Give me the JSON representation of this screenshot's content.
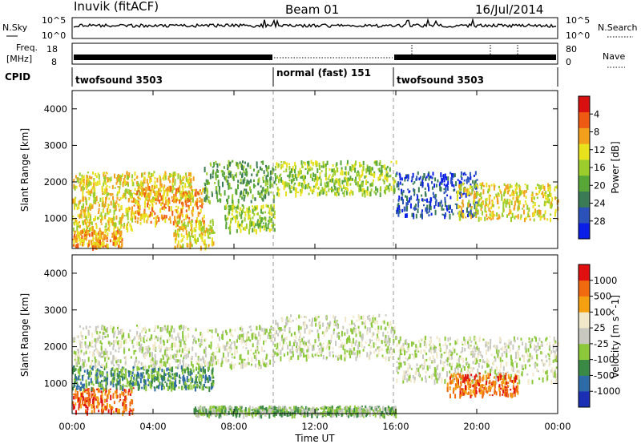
{
  "header": {
    "station": "Inuvik (fitACF)",
    "beam": "Beam 01",
    "date": "16/Jul/2014"
  },
  "top_panels": {
    "nsky_label": "N.Sky",
    "nsky_ticks_left": [
      "10^5",
      "10^0"
    ],
    "nsky_ticks_right": [
      "10^5",
      "10^0"
    ],
    "nsearch_label": "N.Search",
    "freq_label_1": "Freq.",
    "freq_label_2": "[MHz]",
    "freq_ticks": [
      "18",
      "8"
    ],
    "nave_ticks": [
      "80",
      "0"
    ],
    "nave_label": "Nave",
    "cpid_label": "CPID",
    "cpid_segments": [
      {
        "label": "twofsound 3503",
        "start_hour": 0,
        "end_hour": 10
      },
      {
        "label": "normal (fast) 151",
        "start_hour": 10,
        "end_hour": 16
      },
      {
        "label": "twofsound 3503",
        "start_hour": 16,
        "end_hour": 24
      }
    ]
  },
  "chart_data": [
    {
      "type": "heatmap",
      "title": "",
      "quantity": "Power",
      "xlabel": "Time UT",
      "ylabel": "Slant Range [km]",
      "xlim": [
        0,
        24
      ],
      "ylim": [
        180,
        4500
      ],
      "x_tick_labels": [
        "00:00",
        "04:00",
        "08:00",
        "12:00",
        "16:00",
        "20:00",
        "00:00"
      ],
      "y_ticks": [
        1000,
        2000,
        3000,
        4000
      ],
      "colorbar": {
        "label": "Power [dB]",
        "ticks": [
          "4",
          "8",
          "12",
          "16",
          "20",
          "24",
          "28"
        ],
        "colors": [
          "#0a1ee6",
          "#2a52b8",
          "#3a7a54",
          "#58a638",
          "#9ccd2c",
          "#e8e21e",
          "#f2a01c",
          "#ee5a12",
          "#d81010"
        ]
      },
      "bands": [
        {
          "t0": 0.0,
          "t1": 3.0,
          "r0": 700,
          "r1": 1500,
          "level": 5
        },
        {
          "t0": 0.0,
          "t1": 6.0,
          "r0": 1500,
          "r1": 2300,
          "level": 5
        },
        {
          "t0": 0.0,
          "t1": 2.5,
          "r0": 250,
          "r1": 700,
          "level": 6
        },
        {
          "t0": 3.0,
          "t1": 6.5,
          "r0": 900,
          "r1": 1900,
          "level": 6
        },
        {
          "t0": 5.0,
          "t1": 7.0,
          "r0": 250,
          "r1": 1000,
          "level": 5
        },
        {
          "t0": 6.5,
          "t1": 10.0,
          "r0": 1500,
          "r1": 2600,
          "level": 3
        },
        {
          "t0": 7.5,
          "t1": 10.0,
          "r0": 700,
          "r1": 1400,
          "level": 4
        },
        {
          "t0": 10.0,
          "t1": 16.0,
          "r0": 1700,
          "r1": 2600,
          "level": 4
        },
        {
          "t0": 16.0,
          "t1": 20.0,
          "r0": 1100,
          "r1": 2300,
          "level": 1
        },
        {
          "t0": 19.0,
          "t1": 24.0,
          "r0": 1000,
          "r1": 2000,
          "level": 5
        }
      ]
    },
    {
      "type": "heatmap",
      "title": "",
      "quantity": "Velocity",
      "xlabel": "Time UT",
      "ylabel": "Slant Range [km]",
      "xlim": [
        0,
        24
      ],
      "ylim": [
        180,
        4500
      ],
      "x_tick_labels": [
        "00:00",
        "04:00",
        "08:00",
        "12:00",
        "16:00",
        "20:00",
        "00:00"
      ],
      "y_ticks": [
        1000,
        2000,
        3000,
        4000
      ],
      "colorbar": {
        "label": "Velocity [m s^-1]",
        "ticks": [
          "1000",
          "500",
          "100",
          "25",
          "-25",
          "-100",
          "-500",
          "-1000"
        ],
        "colors": [
          "#1a2fb4",
          "#2e6aa6",
          "#3a8a46",
          "#8cc83a",
          "#c8c8c0",
          "#f0e8c8",
          "#f5a010",
          "#f06a10",
          "#e01010"
        ]
      },
      "bands": [
        {
          "t0": 0.0,
          "t1": 3.0,
          "r0": 250,
          "r1": 900,
          "level": 7
        },
        {
          "t0": 0.0,
          "t1": 7.0,
          "r0": 900,
          "r1": 1500,
          "level": 2
        },
        {
          "t0": 0.0,
          "t1": 10.0,
          "r0": 1500,
          "r1": 2600,
          "level": 4
        },
        {
          "t0": 10.0,
          "t1": 16.0,
          "r0": 1700,
          "r1": 2900,
          "level": 4
        },
        {
          "t0": 16.0,
          "t1": 24.0,
          "r0": 1100,
          "r1": 2300,
          "level": 4
        },
        {
          "t0": 18.5,
          "t1": 22.0,
          "r0": 700,
          "r1": 1300,
          "level": 7
        },
        {
          "t0": 6.0,
          "t1": 16.0,
          "r0": 180,
          "r1": 400,
          "level": 3
        }
      ]
    }
  ]
}
